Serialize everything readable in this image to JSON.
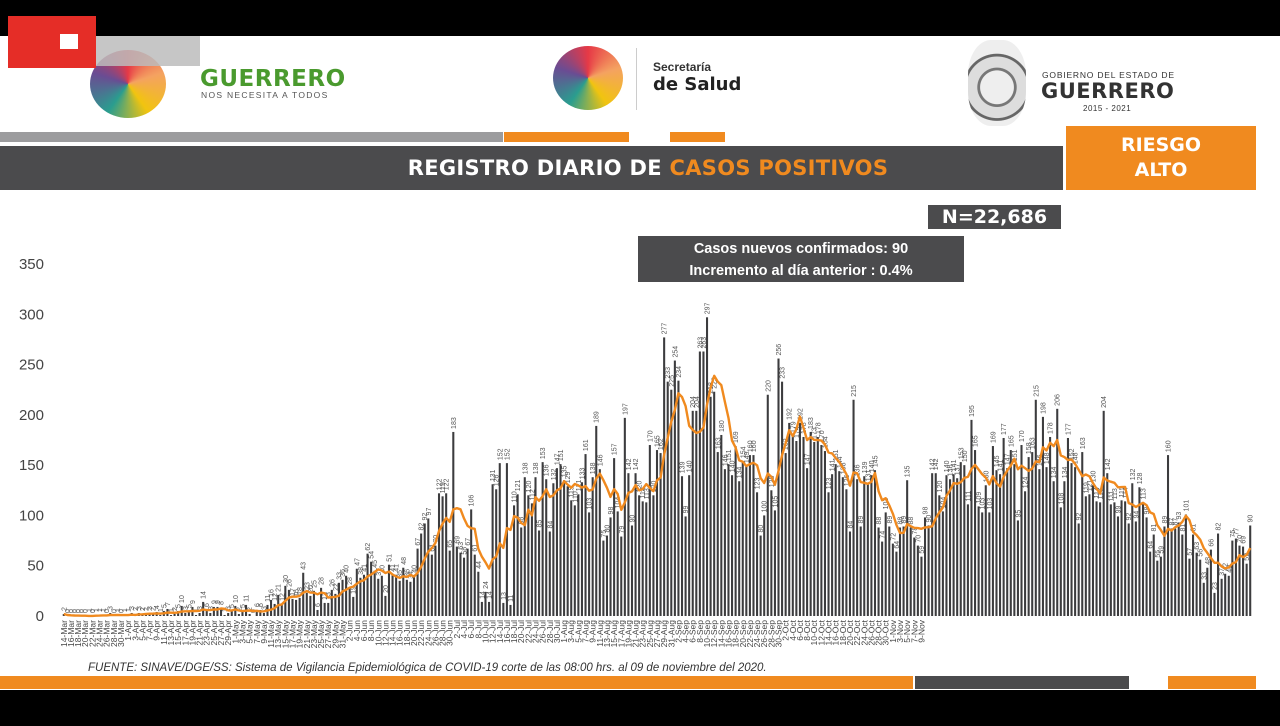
{
  "header": {
    "guerrero_logo": {
      "name": "GUERRERO",
      "tagline": "NOS NECESITA A TODOS"
    },
    "salud_logo": {
      "line1": "Secretaría",
      "line2": "de Salud"
    },
    "gobierno_logo": {
      "line1": "GOBIERNO DEL ESTADO DE",
      "line2": "GUERRERO",
      "years": "2015 - 2021"
    }
  },
  "title": {
    "part1": "REGISTRO DIARIO DE ",
    "part2": "CASOS POSITIVOS"
  },
  "risk": {
    "line1": "RIESGO",
    "line2": "ALTO"
  },
  "total": "N=22,686",
  "info": {
    "line1_label": "Casos nuevos confirmados: ",
    "line1_value": "90",
    "line2_label": "Incremento al día anterior : ",
    "line2_value": "0.4%"
  },
  "footer": "FUENTE: SINAVE/DGE/SS: Sistema de Vigilancia Epidemiológica de COVID-19 corte de las 08:00 hrs. al 09 de noviembre del 2020.",
  "colors": {
    "bar": "#3c3c3e",
    "line": "#f08a1f",
    "band": "#4b4b4d",
    "accent": "#f08a1f"
  },
  "chart_data": {
    "type": "bar",
    "ylim": [
      0,
      350
    ],
    "yticks": [
      0,
      50,
      100,
      150,
      200,
      250,
      300,
      350
    ],
    "x_tick_labels": [
      "14-Mar",
      "16-Mar",
      "18-Mar",
      "20-Mar",
      "22-Mar",
      "24-Mar",
      "26-Mar",
      "28-Mar",
      "30-Mar",
      "1-Apr",
      "3-Apr",
      "5-Apr",
      "7-Apr",
      "9-Apr",
      "11-Apr",
      "13-Apr",
      "15-Apr",
      "17-Apr",
      "19-Apr",
      "21-Apr",
      "23-Apr",
      "25-Apr",
      "27-Apr",
      "29-Apr",
      "1-May",
      "3-May",
      "5-May",
      "7-May",
      "9-May",
      "11-May",
      "13-May",
      "15-May",
      "17-May",
      "19-May",
      "21-May",
      "23-May",
      "25-May",
      "27-May",
      "29-May",
      "31-May",
      "2-Jun",
      "4-Jun",
      "6-Jun",
      "8-Jun",
      "10-Jun",
      "12-Jun",
      "14-Jun",
      "16-Jun",
      "18-Jun",
      "20-Jun",
      "22-Jun",
      "24-Jun",
      "26-Jun",
      "28-Jun",
      "30-Jun",
      "2-Jul",
      "4-Jul",
      "6-Jul",
      "8-Jul",
      "10-Jul",
      "12-Jul",
      "14-Jul",
      "16-Jul",
      "18-Jul",
      "20-Jul",
      "22-Jul",
      "24-Jul",
      "26-Jul",
      "28-Jul",
      "30-Jul",
      "1-Aug",
      "3-Aug",
      "5-Aug",
      "7-Aug",
      "9-Aug",
      "11-Aug",
      "13-Aug",
      "15-Aug",
      "17-Aug",
      "19-Aug",
      "21-Aug",
      "23-Aug",
      "25-Aug",
      "27-Aug",
      "29-Aug",
      "31-Aug",
      "2-Sep",
      "4-Sep",
      "6-Sep",
      "8-Sep",
      "10-Sep",
      "12-Sep",
      "14-Sep",
      "16-Sep",
      "18-Sep",
      "20-Sep",
      "22-Sep",
      "24-Sep",
      "26-Sep",
      "28-Sep",
      "30-Sep",
      "2-Oct",
      "4-Oct",
      "6-Oct",
      "8-Oct",
      "10-Oct",
      "12-Oct",
      "14-Oct",
      "16-Oct",
      "18-Oct",
      "20-Oct",
      "22-Oct",
      "24-Oct",
      "26-Oct",
      "28-Oct",
      "30-Oct",
      "1-Nov",
      "3-Nov",
      "5-Nov",
      "7-Nov",
      "9-Nov"
    ],
    "values": [
      2,
      0,
      0,
      0,
      0,
      0,
      0,
      1,
      0,
      1,
      1,
      1,
      0,
      3,
      0,
      1,
      0,
      1,
      1,
      3,
      2,
      3,
      2,
      2,
      3,
      2,
      4,
      1,
      5,
      7,
      1,
      2,
      5,
      10,
      3,
      5,
      9,
      1,
      3,
      14,
      6,
      3,
      9,
      9,
      8,
      1,
      3,
      5,
      10,
      2,
      5,
      11,
      2,
      0,
      6,
      6,
      3,
      11,
      16,
      12,
      21,
      12,
      30,
      26,
      17,
      16,
      18,
      43,
      23,
      20,
      25,
      6,
      28,
      13,
      13,
      26,
      22,
      33,
      36,
      40,
      28,
      19,
      47,
      38,
      41,
      62,
      54,
      45,
      37,
      40,
      20,
      51,
      41,
      41,
      35,
      48,
      36,
      34,
      40,
      67,
      82,
      92,
      97,
      61,
      70,
      122,
      119,
      122,
      65,
      183,
      69,
      63,
      58,
      67,
      106,
      61,
      44,
      14,
      24,
      14,
      131,
      126,
      152,
      13,
      152,
      11,
      110,
      121,
      88,
      138,
      120,
      112,
      138,
      85,
      153,
      136,
      84,
      132,
      147,
      151,
      135,
      129,
      115,
      110,
      121,
      133,
      161,
      103,
      138,
      189,
      146,
      75,
      80,
      98,
      157,
      104,
      79,
      197,
      142,
      90,
      142,
      120,
      114,
      113,
      170,
      120,
      165,
      162,
      277,
      233,
      225,
      254,
      234,
      139,
      99,
      140,
      204,
      204,
      263,
      263,
      297,
      218,
      223,
      163,
      180,
      146,
      151,
      140,
      169,
      134,
      154,
      149,
      160,
      160,
      123,
      80,
      100,
      220,
      125,
      105,
      256,
      233,
      162,
      192,
      179,
      174,
      192,
      178,
      147,
      183,
      173,
      178,
      170,
      164,
      123,
      141,
      151,
      144,
      138,
      126,
      84,
      215,
      136,
      89,
      139,
      131,
      140,
      145,
      88,
      74,
      103,
      89,
      72,
      64,
      88,
      89,
      135,
      88,
      78,
      70,
      59,
      98,
      90,
      142,
      142,
      120,
      104,
      140,
      136,
      141,
      137,
      153,
      150,
      111,
      195,
      165,
      109,
      103,
      130,
      103,
      169,
      145,
      141,
      177,
      147,
      165,
      151,
      95,
      170,
      124,
      158,
      163,
      215,
      146,
      198,
      148,
      178,
      134,
      206,
      108,
      134,
      177,
      152,
      148,
      92,
      163,
      119,
      121,
      130,
      114,
      113,
      204,
      142,
      111,
      113,
      99,
      115,
      114,
      92,
      132,
      94,
      128,
      113,
      98,
      64,
      81,
      55,
      59,
      89,
      160,
      87,
      87,
      93,
      81,
      101,
      57,
      81,
      63,
      56,
      33,
      48,
      66,
      23,
      82,
      37,
      42,
      40,
      75,
      77,
      70,
      69,
      52,
      90
    ],
    "moving_average_color": "#f08a1f"
  }
}
